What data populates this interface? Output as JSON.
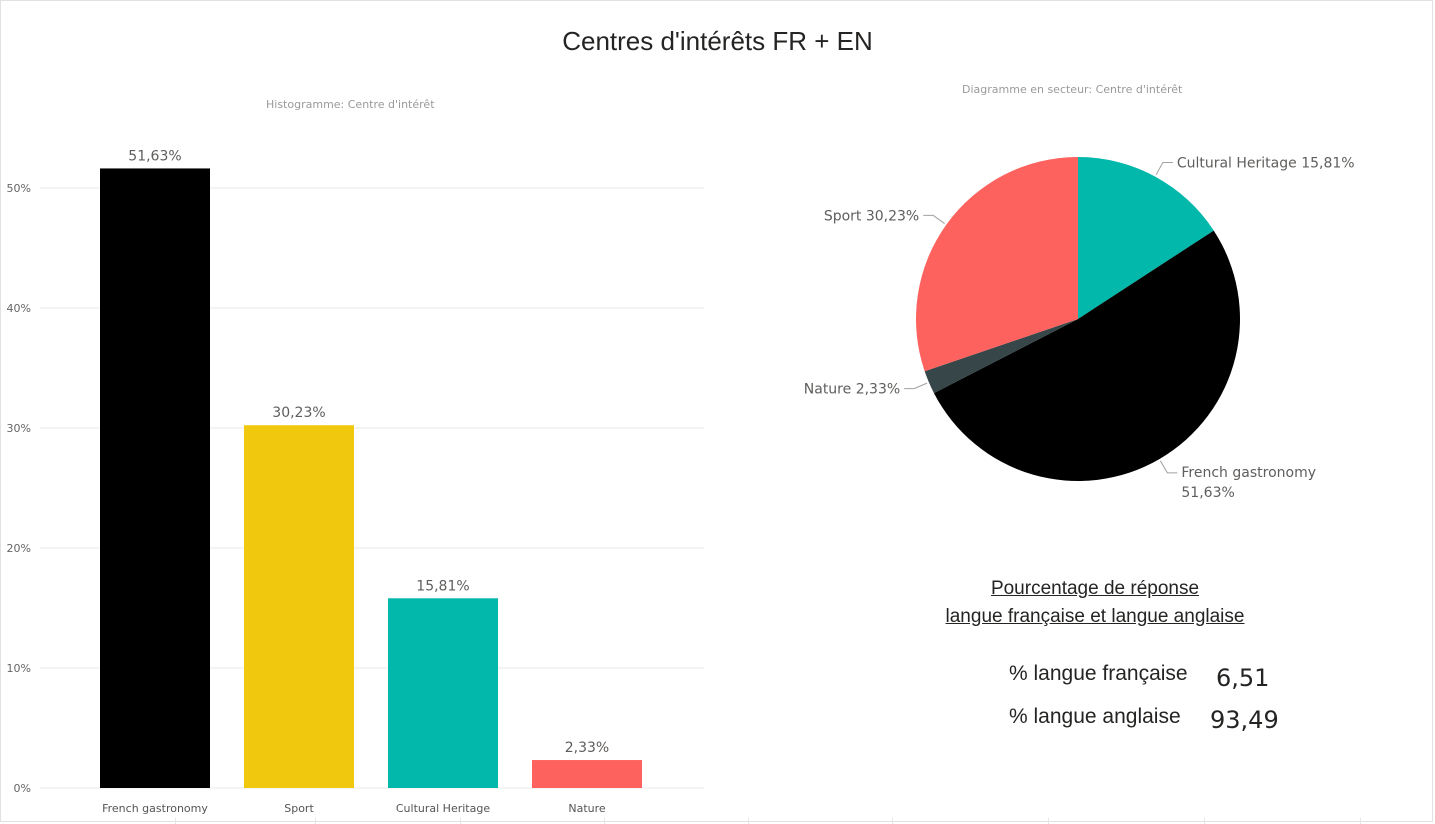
{
  "report": {
    "title": "Centres d'intérêts FR + EN"
  },
  "colors": {
    "black": "#000000",
    "yellow": "#F0C80E",
    "teal": "#01B8AA",
    "coral": "#FD625E",
    "dark_slate": "#374649",
    "grid": "#e8e8e8",
    "axis_text": "#666666",
    "label_text": "#605E5C"
  },
  "chart_data": [
    {
      "type": "bar",
      "title": "Histogramme: Centre d'intérêt",
      "categories": [
        "French gastronomy",
        "Sport",
        "Cultural Heritage",
        "Nature"
      ],
      "values": [
        51.63,
        30.23,
        15.81,
        2.33
      ],
      "data_labels": [
        "51,63%",
        "30,23%",
        "15,81%",
        "2,33%"
      ],
      "bar_colors": [
        "#000000",
        "#F0C80E",
        "#01B8AA",
        "#FD625E"
      ],
      "ylim": [
        0,
        55
      ],
      "yticks": [
        0,
        10,
        20,
        30,
        40,
        50
      ],
      "ytick_labels": [
        "0%",
        "10%",
        "20%",
        "30%",
        "40%",
        "50%"
      ],
      "xlabel": "",
      "ylabel": "",
      "grid": true
    },
    {
      "type": "pie",
      "title": "Diagramme en secteur: Centre d'intérêt",
      "slices": [
        {
          "label": "Cultural Heritage",
          "value": 15.81,
          "value_label": "15,81%",
          "color": "#01B8AA"
        },
        {
          "label": "French gastronomy",
          "value": 51.63,
          "value_label": "51,63%",
          "color": "#000000"
        },
        {
          "label": "Nature",
          "value": 2.33,
          "value_label": "2,33%",
          "color": "#374649"
        },
        {
          "label": "Sport",
          "value": 30.23,
          "value_label": "30,23%",
          "color": "#FD625E"
        }
      ]
    }
  ],
  "summary": {
    "title_line1": "Pourcentage de réponse ",
    "title_line2": "langue française et langue anglaise",
    "rows": [
      {
        "label": "% langue française",
        "value": "6,51"
      },
      {
        "label": "% langue anglaise",
        "value": "93,49"
      }
    ]
  }
}
